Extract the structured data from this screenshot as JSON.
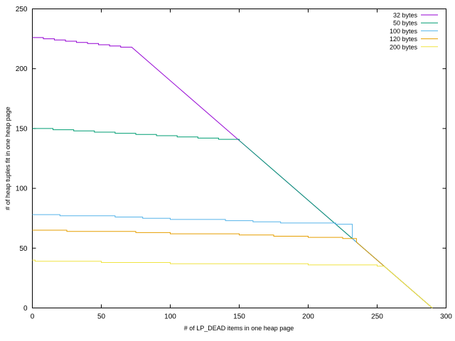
{
  "chart_data": {
    "type": "line",
    "title": "",
    "xlabel": "# of LP_DEAD items in one heap page",
    "ylabel": "# of heap tuples fit in one heap page",
    "xlim": [
      0,
      300
    ],
    "ylim": [
      0,
      250
    ],
    "xticks": [
      0,
      50,
      100,
      150,
      200,
      250,
      300
    ],
    "yticks": [
      0,
      50,
      100,
      150,
      200,
      250
    ],
    "x_tick_labels": [
      "0",
      "50",
      "100",
      "150",
      "200",
      "250",
      "300"
    ],
    "y_tick_labels": [
      "0",
      "50",
      "100",
      "150",
      "200",
      "250"
    ],
    "grid": false,
    "legend_position": "top-right",
    "series": [
      {
        "name": "32 bytes",
        "color": "#9400d3",
        "x": [
          0,
          8,
          16,
          24,
          32,
          40,
          48,
          56,
          64,
          72,
          290
        ],
        "y": [
          226,
          225,
          224,
          223,
          222,
          221,
          220,
          219,
          218,
          218,
          0
        ]
      },
      {
        "name": "50 bytes",
        "color": "#009e73",
        "x": [
          0,
          15,
          30,
          45,
          60,
          75,
          90,
          105,
          120,
          135,
          150,
          290
        ],
        "y": [
          150,
          149,
          148,
          147,
          146,
          145,
          144,
          143,
          142,
          141,
          140,
          0
        ]
      },
      {
        "name": "100 bytes",
        "color": "#56b4e9",
        "x": [
          0,
          20,
          40,
          60,
          80,
          100,
          120,
          140,
          160,
          180,
          200,
          220,
          232,
          290
        ],
        "y": [
          78,
          77,
          77,
          76,
          75,
          74,
          74,
          73,
          72,
          71,
          71,
          70,
          58,
          0
        ]
      },
      {
        "name": "120 bytes",
        "color": "#e69f00",
        "x": [
          0,
          25,
          50,
          75,
          100,
          125,
          150,
          175,
          200,
          225,
          235,
          290
        ],
        "y": [
          65,
          64,
          64,
          63,
          62,
          62,
          61,
          60,
          59,
          58,
          55,
          0
        ]
      },
      {
        "name": "200 bytes",
        "color": "#f0e442",
        "x": [
          0,
          2,
          50,
          100,
          150,
          200,
          250,
          255,
          290
        ],
        "y": [
          40,
          39,
          38,
          37,
          37,
          36,
          35,
          35,
          0
        ]
      }
    ]
  }
}
